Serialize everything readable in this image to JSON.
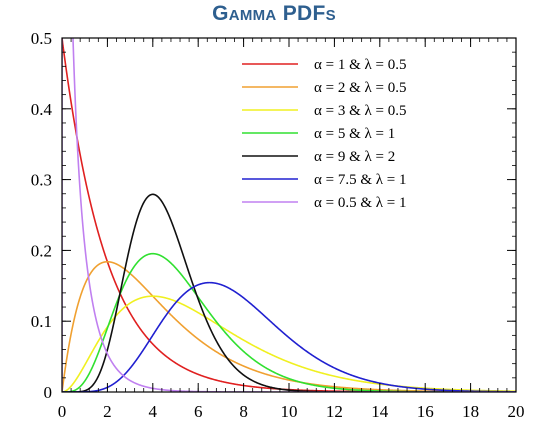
{
  "chart_data": {
    "type": "line",
    "title": "Gamma PDFs",
    "xlabel": "",
    "ylabel": "",
    "xlim": [
      0,
      20
    ],
    "ylim": [
      0,
      0.5
    ],
    "x_ticks": [
      0,
      2,
      4,
      6,
      8,
      10,
      12,
      14,
      16,
      18,
      20
    ],
    "y_ticks": [
      0,
      0.1,
      0.2,
      0.3,
      0.4,
      0.5
    ],
    "x_tick_labels": [
      "0",
      "2",
      "4",
      "6",
      "8",
      "10",
      "12",
      "14",
      "16",
      "18",
      "20"
    ],
    "y_tick_labels": [
      "0",
      "0.1",
      "0.2",
      "0.3",
      "0.4",
      "0.5"
    ],
    "grid": false,
    "legend_position": "top-right",
    "series": [
      {
        "name": "α = 1 & λ = 0.5",
        "alpha": 1,
        "lambda": 0.5,
        "color": "#e02020"
      },
      {
        "name": "α = 2 & λ = 0.5",
        "alpha": 2,
        "lambda": 0.5,
        "color": "#f0a030"
      },
      {
        "name": "α = 3 & λ = 0.5",
        "alpha": 3,
        "lambda": 0.5,
        "color": "#f0f020"
      },
      {
        "name": "α = 5 & λ = 1",
        "alpha": 5,
        "lambda": 1,
        "color": "#30e030"
      },
      {
        "name": "α = 9 & λ = 2",
        "alpha": 9,
        "lambda": 2,
        "color": "#101010"
      },
      {
        "name": "α = 7.5 & λ = 1",
        "alpha": 7.5,
        "lambda": 1,
        "color": "#2020d0"
      },
      {
        "name": "α = 0.5 & λ = 1",
        "alpha": 0.5,
        "lambda": 1,
        "color": "#c080f0"
      }
    ]
  }
}
